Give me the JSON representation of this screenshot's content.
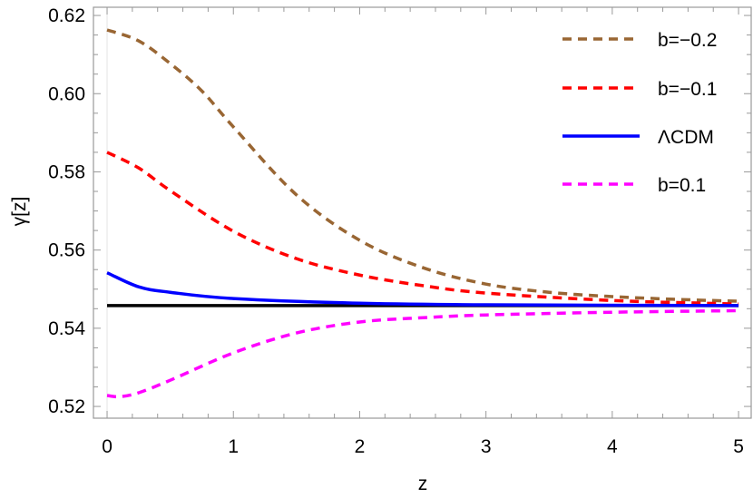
{
  "chart_data": {
    "type": "line",
    "title": "",
    "xlabel": "z",
    "ylabel": "γ[z]",
    "xlim": [
      -0.108,
      5.1
    ],
    "ylim": [
      0.517,
      0.6221
    ],
    "xticks": [
      0,
      1,
      2,
      3,
      4,
      5
    ],
    "xtick_labels": [
      "0",
      "1",
      "2",
      "3",
      "4",
      "5"
    ],
    "yticks": [
      0.52,
      0.54,
      0.56,
      0.58,
      0.6,
      0.62
    ],
    "ytick_labels": [
      "0.52",
      "0.54",
      "0.56",
      "0.58",
      "0.60",
      "0.62"
    ],
    "grid": false,
    "legend_position": "top-right",
    "series": [
      {
        "name": "b=−0.2",
        "color": "#996633",
        "dash": "dashed",
        "x": [
          0,
          0.25,
          0.5,
          0.75,
          1,
          1.5,
          2,
          2.5,
          3,
          3.5,
          4,
          4.5,
          5
        ],
        "y": [
          0.6163,
          0.6135,
          0.6077,
          0.6007,
          0.5915,
          0.5741,
          0.5625,
          0.5555,
          0.5513,
          0.5492,
          0.5481,
          0.5474,
          0.5469
        ]
      },
      {
        "name": "b=−0.1",
        "color": "#ff0000",
        "dash": "dashed",
        "x": [
          0,
          0.25,
          0.5,
          1,
          1.5,
          2,
          2.5,
          3,
          4,
          5
        ],
        "y": [
          0.585,
          0.581,
          0.5752,
          0.5648,
          0.5578,
          0.5536,
          0.5509,
          0.549,
          0.5471,
          0.5462
        ]
      },
      {
        "name": "ΛCDM",
        "color": "#0000ff",
        "dash": "solid",
        "x": [
          0,
          0.25,
          0.5,
          1,
          2,
          3,
          5
        ],
        "y": [
          0.5542,
          0.5506,
          0.5492,
          0.5476,
          0.5464,
          0.546,
          0.5458
        ]
      },
      {
        "name": "b=0.1",
        "color": "#ff00ff",
        "dash": "dashed",
        "x": [
          0,
          0.1,
          0.25,
          0.5,
          1,
          1.5,
          2,
          2.5,
          3,
          4,
          5
        ],
        "y": [
          0.5228,
          0.5225,
          0.5235,
          0.5267,
          0.5337,
          0.5388,
          0.5416,
          0.5427,
          0.5434,
          0.5441,
          0.5445
        ]
      },
      {
        "color": "#000000",
        "dash": "solid",
        "x": [
          0,
          5
        ],
        "y": [
          0.5458,
          0.5458
        ]
      }
    ]
  }
}
